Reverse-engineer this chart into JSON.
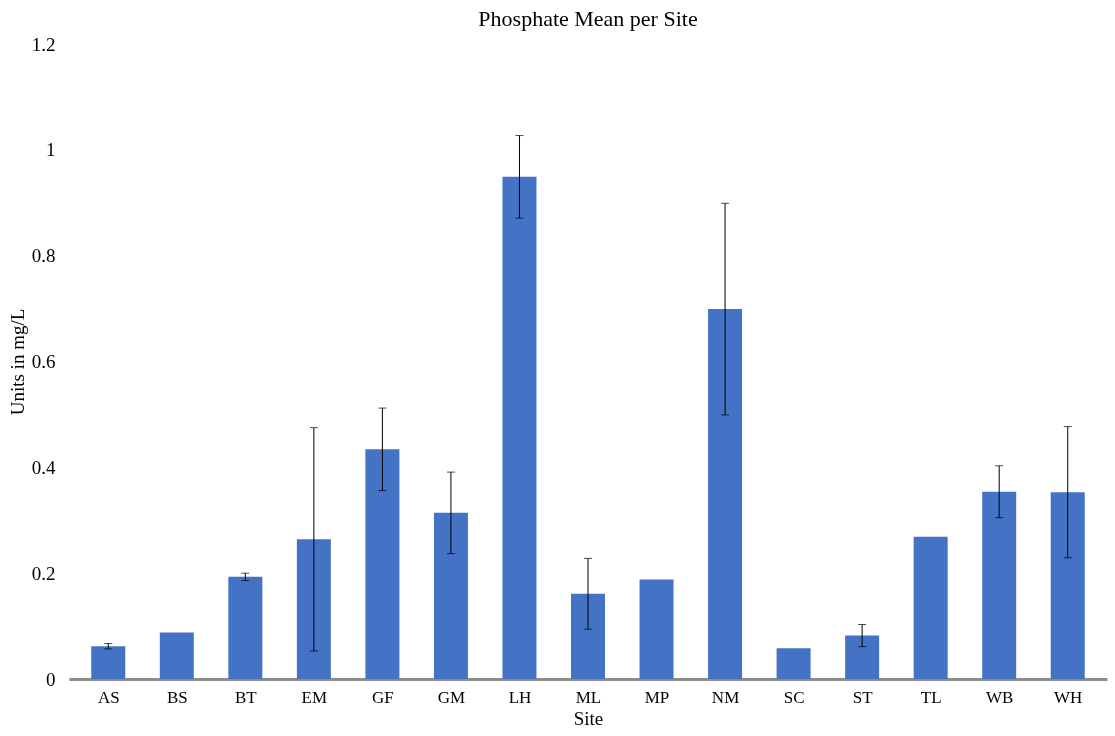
{
  "chart_data": {
    "type": "bar",
    "title": "Phosphate Mean per Site",
    "xlabel": "Site",
    "ylabel": "Units in mg/L",
    "categories": [
      "AS",
      "BS",
      "BT",
      "EM",
      "GF",
      "GM",
      "LH",
      "ML",
      "MP",
      "NM",
      "SC",
      "ST",
      "TL",
      "WB",
      "WH"
    ],
    "values": [
      0.062,
      0.088,
      0.193,
      0.264,
      0.434,
      0.314,
      0.949,
      0.161,
      0.188,
      0.699,
      0.058,
      0.082,
      0.269,
      0.354,
      0.353
    ],
    "errors": [
      0.005,
      null,
      0.007,
      0.211,
      0.078,
      0.077,
      0.078,
      0.067,
      null,
      0.2,
      null,
      0.021,
      null,
      0.049,
      0.124
    ],
    "color": "#4472c4",
    "ylim": [
      0,
      1.2
    ],
    "yticks": [
      0,
      0.2,
      0.4,
      0.6,
      0.8,
      1,
      1.2
    ],
    "grid": false
  }
}
